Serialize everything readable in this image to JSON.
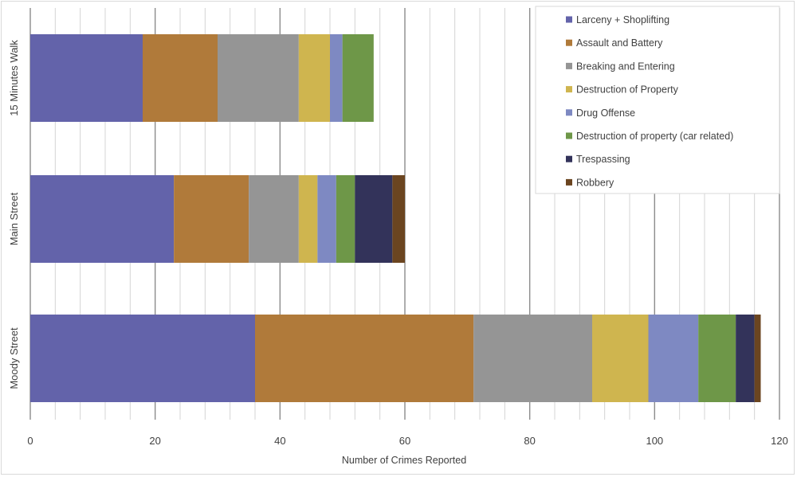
{
  "chart_data": {
    "type": "bar",
    "orientation": "horizontal",
    "stacked": true,
    "title": "",
    "xlabel": "Number of Crimes Reported",
    "ylabel": "",
    "xlim": [
      0,
      120
    ],
    "x_ticks": [
      0,
      20,
      40,
      60,
      80,
      100,
      120
    ],
    "x_minor_step": 4,
    "grid": true,
    "legend_position": "top-right",
    "categories": [
      "Moody Street",
      "Main Street",
      "15 Minutes Walk"
    ],
    "series": [
      {
        "name": "Larceny + Shoplifting",
        "color": "#6363aa",
        "values": [
          36,
          23,
          18
        ]
      },
      {
        "name": "Assault and Battery",
        "color": "#b07a3a",
        "values": [
          35,
          12,
          12
        ]
      },
      {
        "name": "Breaking and Entering",
        "color": "#959595",
        "values": [
          19,
          8,
          13
        ]
      },
      {
        "name": "Destruction of Property",
        "color": "#cfb54f",
        "values": [
          9,
          3,
          5
        ]
      },
      {
        "name": "Drug Offense",
        "color": "#7e89c2",
        "values": [
          8,
          3,
          2
        ]
      },
      {
        "name": "Destruction of property (car related)",
        "color": "#6e9748",
        "values": [
          6,
          3,
          5
        ]
      },
      {
        "name": "Trespassing",
        "color": "#33335a",
        "values": [
          3,
          6,
          0
        ]
      },
      {
        "name": "Robbery",
        "color": "#6b4520",
        "values": [
          1,
          2,
          0
        ]
      }
    ]
  }
}
